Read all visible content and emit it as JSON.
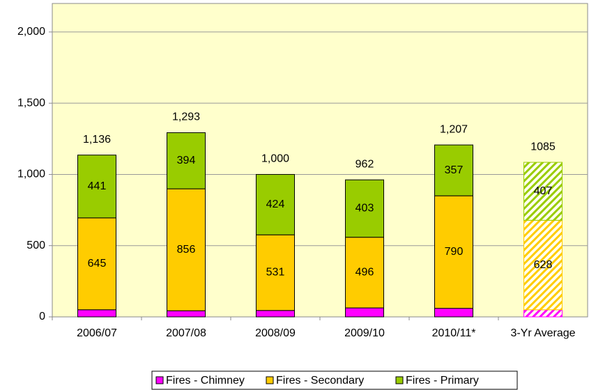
{
  "chart_data": {
    "type": "stacked-bar",
    "categories": [
      "2006/07",
      "2007/08",
      "2008/09",
      "2009/10",
      "2010/11*",
      "3-Yr Average"
    ],
    "series": [
      {
        "name": "Fires - Chimney",
        "color": "#ff00ff",
        "values": [
          50,
          43,
          45,
          63,
          60,
          50
        ]
      },
      {
        "name": "Fires - Secondary",
        "color": "#ffcc00",
        "values": [
          645,
          856,
          531,
          496,
          790,
          628
        ]
      },
      {
        "name": "Fires - Primary",
        "color": "#99cc00",
        "values": [
          441,
          394,
          424,
          403,
          357,
          407
        ]
      }
    ],
    "totals": [
      1136,
      1293,
      1000,
      962,
      1207,
      1085
    ],
    "total_labels": [
      "1,136",
      "1,293",
      "1,000",
      "962",
      "1,207",
      "1085"
    ],
    "hatched": [
      false,
      false,
      false,
      false,
      false,
      true
    ],
    "ylim": [
      0,
      2200
    ],
    "yticks": [
      0,
      500,
      {
        "value": 1000,
        "label": "1,000"
      },
      {
        "value": 1500,
        "label": "1,500"
      },
      {
        "value": 2000,
        "label": "2,000"
      }
    ],
    "grid": true,
    "legend": "bottom"
  }
}
